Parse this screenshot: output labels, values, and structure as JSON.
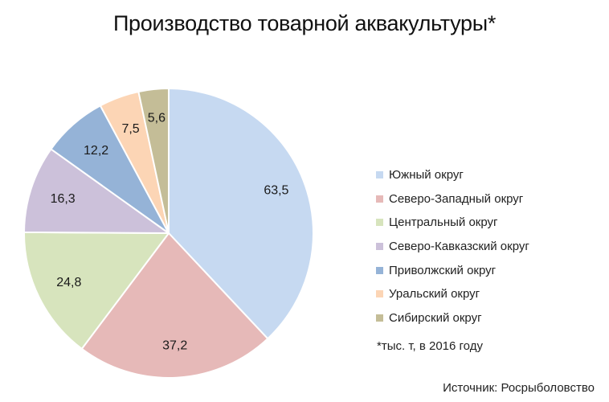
{
  "chart_data": {
    "type": "pie",
    "title": "Производство товарной аквакультуры*",
    "slices": [
      {
        "label": "Южный округ",
        "value": 63.5,
        "display": "63,5",
        "color": "#c6d9f1"
      },
      {
        "label": "Северо-Западный округ",
        "value": 37.2,
        "display": "37,2",
        "color": "#e6b9b8"
      },
      {
        "label": "Центральный округ",
        "value": 24.8,
        "display": "24,8",
        "color": "#d7e4bd"
      },
      {
        "label": "Северо-Кавказский округ",
        "value": 16.3,
        "display": "16,3",
        "color": "#ccc1da"
      },
      {
        "label": "Приволжский округ",
        "value": 12.2,
        "display": "12,2",
        "color": "#95b3d7"
      },
      {
        "label": "Уральский округ",
        "value": 7.5,
        "display": "7,5",
        "color": "#fcd5b5"
      },
      {
        "label": "Сибирский округ",
        "value": 5.6,
        "display": "5,6",
        "color": "#c4bd97"
      }
    ],
    "start_angle": "12 o'clock",
    "direction": "clockwise",
    "legend_position": "right",
    "footnote": "*тыс. т, в 2016 году",
    "source": "Источник: Росрыболовство"
  }
}
